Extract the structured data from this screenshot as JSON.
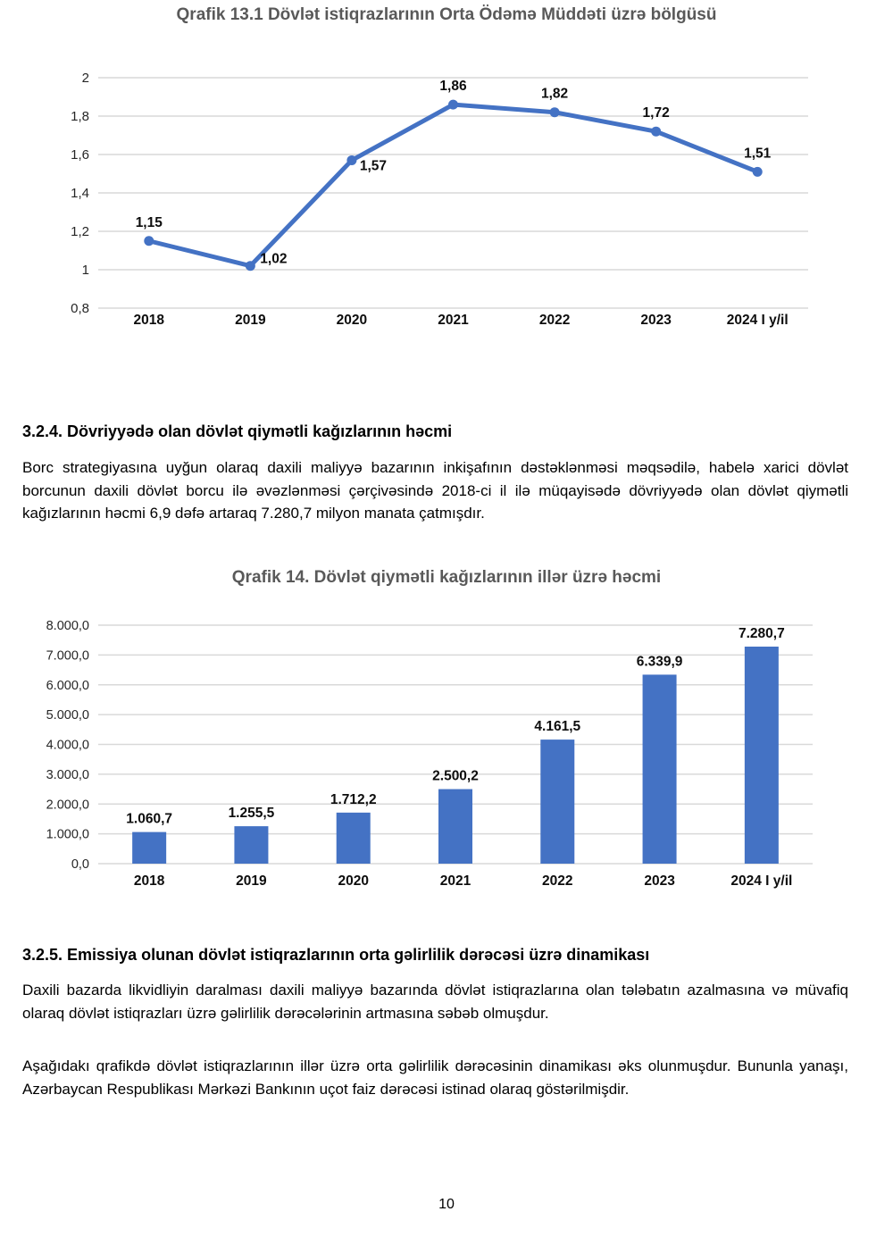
{
  "page": {
    "number": "10"
  },
  "colors": {
    "accent_blue": "#4472C4",
    "title_grey": "#595959",
    "gridline": "#D9D9D9",
    "text": "#000000"
  },
  "section_324": {
    "heading": "3.2.4. Dövriyyədə olan dövlət qiymətli kağızlarının həcmi",
    "paragraph": "Borc strategiyasına uyğun olaraq daxili maliyyə bazarının inkişafının dəstəklənməsi məqsədilə, habelə xarici dövlət borcunun daxili dövlət borcu ilə əvəzlənməsi çərçivəsində 2018-ci il ilə müqayisədə dövriyyədə olan dövlət qiymətli kağızlarının həcmi 6,9 dəfə artaraq 7.280,7 milyon manata çatmışdır."
  },
  "section_325": {
    "heading": "3.2.5. Emissiya olunan dövlət istiqrazlarının orta gəlirlilik dərəcəsi üzrə dinamikası",
    "paragraph1": "Daxili bazarda likvidliyin daralması daxili maliyyə bazarında dövlət istiqrazlarına olan tələbatın azalmasına və müvafiq olaraq dövlət istiqrazları üzrə gəlirlilik dərəcələrinin artmasına səbəb olmuşdur.",
    "paragraph2": "Aşağıdakı qrafikdə dövlət istiqrazlarının illər üzrə orta gəlirlilik dərəcəsinin dinamikası əks olunmuşdur. Bununla yanaşı, Azərbaycan Respublikası Mərkəzi Bankının uçot faiz dərəcəsi istinad olaraq göstərilmişdir."
  },
  "chart_data": [
    {
      "type": "line",
      "title": "Qrafik 13.1 Dövlət istiqrazlarının Orta Ödəmə Müddəti üzrə bölgüsü",
      "categories": [
        "2018",
        "2019",
        "2020",
        "2021",
        "2022",
        "2023",
        "2024 I y/il"
      ],
      "values": [
        1.15,
        1.02,
        1.57,
        1.86,
        1.82,
        1.72,
        1.51
      ],
      "point_labels": [
        "1,15",
        "1,02",
        "1,57",
        "1,86",
        "1,82",
        "1,72",
        "1,51"
      ],
      "ylim": [
        0.8,
        2.0
      ],
      "ytick_labels": [
        "2",
        "1,8",
        "1,6",
        "1,4",
        "1,2",
        "1",
        "0,8"
      ],
      "grid": true,
      "legend": false,
      "line_color": "#4472C4"
    },
    {
      "type": "bar",
      "title": "Qrafik 14. Dövlət qiymətli kağızlarının illər üzrə həcmi",
      "categories": [
        "2018",
        "2019",
        "2020",
        "2021",
        "2022",
        "2023",
        "2024 I y/il"
      ],
      "values": [
        1060.7,
        1255.5,
        1712.2,
        2500.2,
        4161.5,
        6339.9,
        7280.7
      ],
      "bar_labels": [
        "1.060,7",
        "1.255,5",
        "1.712,2",
        "2.500,2",
        "4.161,5",
        "6.339,9",
        "7.280,7"
      ],
      "ylim": [
        0,
        8000
      ],
      "ytick_labels": [
        "8.000,0",
        "7.000,0",
        "6.000,0",
        "5.000,0",
        "4.000,0",
        "3.000,0",
        "2.000,0",
        "1.000,0",
        "0,0"
      ],
      "grid": true,
      "legend": false,
      "bar_color": "#4472C4"
    }
  ]
}
